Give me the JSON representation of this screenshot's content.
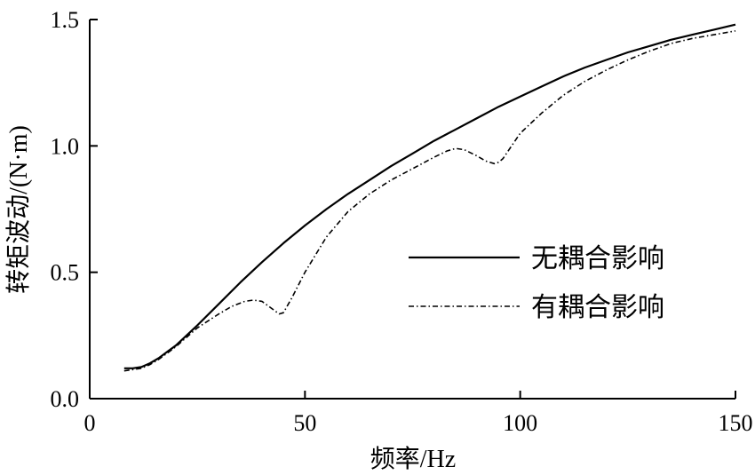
{
  "chart_data": {
    "type": "line",
    "xlabel": "频率/Hz",
    "ylabel": "转矩波动/(N·m)",
    "xlim": [
      0,
      150
    ],
    "ylim": [
      0,
      1.5
    ],
    "xticks": [
      0,
      50,
      100,
      150
    ],
    "xtick_labels": [
      "0",
      "50",
      "100",
      "150"
    ],
    "yticks": [
      0,
      0.5,
      1.0,
      1.5
    ],
    "ytick_labels": [
      "0.0",
      "0.5",
      "1.0",
      "1.5"
    ],
    "grid": false,
    "legend_position": "right",
    "series": [
      {
        "name": "无耦合影响",
        "style": "solid",
        "color": "#000000",
        "x": [
          8,
          10,
          12,
          14,
          16,
          18,
          20,
          25,
          30,
          35,
          40,
          45,
          50,
          55,
          60,
          65,
          70,
          75,
          80,
          85,
          90,
          95,
          100,
          105,
          110,
          115,
          120,
          125,
          130,
          135,
          140,
          145,
          150
        ],
        "y": [
          0.12,
          0.12,
          0.125,
          0.14,
          0.16,
          0.185,
          0.21,
          0.29,
          0.375,
          0.46,
          0.54,
          0.615,
          0.685,
          0.75,
          0.81,
          0.865,
          0.92,
          0.97,
          1.02,
          1.065,
          1.11,
          1.155,
          1.195,
          1.235,
          1.275,
          1.31,
          1.34,
          1.37,
          1.395,
          1.42,
          1.44,
          1.46,
          1.48
        ]
      },
      {
        "name": "有耦合影响",
        "style": "dash-dot",
        "color": "#000000",
        "x": [
          8,
          10,
          12,
          14,
          16,
          18,
          20,
          25,
          30,
          33,
          36,
          38,
          40,
          42,
          44,
          45,
          47,
          50,
          55,
          60,
          65,
          70,
          75,
          80,
          83,
          85,
          87,
          90,
          92,
          94,
          95,
          96,
          98,
          100,
          105,
          110,
          115,
          120,
          125,
          130,
          135,
          140,
          145,
          150
        ],
        "y": [
          0.11,
          0.115,
          0.12,
          0.135,
          0.155,
          0.18,
          0.205,
          0.28,
          0.335,
          0.365,
          0.385,
          0.39,
          0.385,
          0.36,
          0.335,
          0.34,
          0.4,
          0.5,
          0.64,
          0.74,
          0.81,
          0.865,
          0.91,
          0.955,
          0.98,
          0.99,
          0.985,
          0.96,
          0.94,
          0.93,
          0.935,
          0.95,
          1.0,
          1.05,
          1.13,
          1.2,
          1.255,
          1.3,
          1.34,
          1.375,
          1.405,
          1.425,
          1.44,
          1.455
        ]
      }
    ]
  }
}
